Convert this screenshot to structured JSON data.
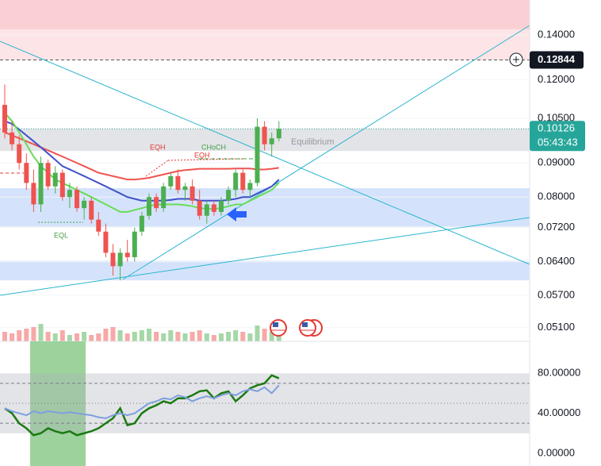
{
  "chart_data": [
    {
      "type": "candlestick",
      "log_scale": true,
      "grid": true,
      "ylim": [
        0.0486,
        0.158
      ],
      "yticks": [
        {
          "value": 0.14,
          "label": "0.14000"
        },
        {
          "value": 0.12,
          "label": "0.12000"
        },
        {
          "value": 0.105,
          "label": "0.10500"
        },
        {
          "value": 0.09,
          "label": "0.09000"
        },
        {
          "value": 0.08,
          "label": "0.08000"
        },
        {
          "value": 0.072,
          "label": "0.07200"
        },
        {
          "value": 0.064,
          "label": "0.06400"
        },
        {
          "value": 0.057,
          "label": "0.05700"
        },
        {
          "value": 0.051,
          "label": "0.05100"
        }
      ],
      "up_color": "#4caf50",
      "down_color": "#ef5350",
      "open": [
        0.11,
        0.1,
        0.096,
        0.09,
        0.084,
        0.078,
        0.09,
        0.083,
        0.087,
        0.08,
        0.082,
        0.077,
        0.079,
        0.074,
        0.071,
        0.066,
        0.063,
        0.066,
        0.065,
        0.071,
        0.075,
        0.08,
        0.077,
        0.083,
        0.086,
        0.082,
        0.083,
        0.079,
        0.075,
        0.078,
        0.076,
        0.079,
        0.082,
        0.087,
        0.082,
        0.084,
        0.102,
        0.096,
        0.098
      ],
      "high": [
        0.118,
        0.104,
        0.099,
        0.093,
        0.088,
        0.092,
        0.091,
        0.089,
        0.088,
        0.084,
        0.083,
        0.08,
        0.08,
        0.076,
        0.073,
        0.068,
        0.067,
        0.069,
        0.072,
        0.076,
        0.081,
        0.081,
        0.084,
        0.087,
        0.088,
        0.084,
        0.085,
        0.082,
        0.079,
        0.079,
        0.08,
        0.083,
        0.088,
        0.088,
        0.085,
        0.105,
        0.104,
        0.1,
        0.104
      ],
      "low": [
        0.098,
        0.094,
        0.088,
        0.082,
        0.076,
        0.076,
        0.082,
        0.081,
        0.079,
        0.077,
        0.076,
        0.074,
        0.073,
        0.07,
        0.065,
        0.061,
        0.06,
        0.064,
        0.064,
        0.07,
        0.074,
        0.076,
        0.076,
        0.082,
        0.081,
        0.079,
        0.078,
        0.074,
        0.073,
        0.075,
        0.075,
        0.078,
        0.08,
        0.081,
        0.08,
        0.083,
        0.094,
        0.092,
        0.097
      ],
      "close": [
        0.1,
        0.096,
        0.09,
        0.084,
        0.078,
        0.09,
        0.083,
        0.087,
        0.08,
        0.082,
        0.077,
        0.079,
        0.074,
        0.071,
        0.066,
        0.063,
        0.066,
        0.065,
        0.071,
        0.075,
        0.08,
        0.077,
        0.083,
        0.086,
        0.082,
        0.083,
        0.079,
        0.075,
        0.078,
        0.076,
        0.079,
        0.082,
        0.087,
        0.082,
        0.084,
        0.102,
        0.096,
        0.098,
        0.10126
      ],
      "volume_ylim": [
        0,
        100
      ],
      "volume": [
        30,
        25,
        35,
        40,
        45,
        55,
        30,
        25,
        35,
        20,
        25,
        30,
        20,
        25,
        40,
        45,
        35,
        25,
        30,
        35,
        40,
        30,
        25,
        35,
        30,
        25,
        30,
        35,
        25,
        20,
        25,
        30,
        35,
        30,
        25,
        50,
        40,
        30,
        35
      ],
      "lines": [
        {
          "color": "#f05350",
          "values": [
            0.1,
            0.099,
            0.098,
            0.097,
            0.096,
            0.095,
            0.094,
            0.093,
            0.092,
            0.091,
            0.09,
            0.089,
            0.088,
            0.087,
            0.0865,
            0.086,
            0.0855,
            0.085,
            0.085,
            0.0852,
            0.0855,
            0.086,
            0.0865,
            0.087,
            0.0875,
            0.0878,
            0.088,
            0.0882,
            0.0882,
            0.0882,
            0.0882,
            0.0882,
            0.0883,
            0.0883,
            0.0883,
            0.088,
            0.088,
            0.0882,
            0.0885
          ]
        },
        {
          "color": "#3f51c8",
          "values": [
            0.104,
            0.103,
            0.101,
            0.099,
            0.097,
            0.095,
            0.093,
            0.091,
            0.089,
            0.088,
            0.087,
            0.086,
            0.085,
            0.084,
            0.083,
            0.082,
            0.081,
            0.08,
            0.0795,
            0.079,
            0.079,
            0.079,
            0.079,
            0.0792,
            0.0795,
            0.0795,
            0.0795,
            0.079,
            0.079,
            0.079,
            0.079,
            0.0792,
            0.0795,
            0.08,
            0.08,
            0.081,
            0.082,
            0.083,
            0.085
          ]
        },
        {
          "color": "#66dd55",
          "values": [
            0.107,
            0.104,
            0.1,
            0.096,
            0.092,
            0.089,
            0.087,
            0.085,
            0.084,
            0.083,
            0.082,
            0.081,
            0.08,
            0.079,
            0.078,
            0.077,
            0.076,
            0.076,
            0.0765,
            0.077,
            0.0775,
            0.078,
            0.078,
            0.078,
            0.078,
            0.0778,
            0.0775,
            0.077,
            0.0768,
            0.0768,
            0.077,
            0.0775,
            0.078,
            0.078,
            0.079,
            0.08,
            0.081,
            0.082,
            0.084
          ]
        }
      ],
      "zones": [
        {
          "from": 0.1285,
          "to": 0.158,
          "color": "#fde4e6"
        },
        {
          "from": 0.1428,
          "to": 0.158,
          "color": "#fbd0d4"
        },
        {
          "from": 0.0938,
          "to": 0.1013,
          "color": "#e3e4e8"
        },
        {
          "from": 0.0722,
          "to": 0.0825,
          "color": "#d4e3fb"
        },
        {
          "from": 0.06,
          "to": 0.0642,
          "color": "#d4e3fb"
        }
      ],
      "annotations": [
        "EQH",
        "EQH",
        "CHoCH",
        "EQL",
        "Equilibrium"
      ],
      "crosshair_price": {
        "value": 0.12844,
        "label": "0.12844"
      },
      "last_price": {
        "value": 0.10126,
        "label": "0.10126"
      },
      "countdown": "05:43:43"
    },
    {
      "type": "line",
      "ylim": [
        -12.8,
        112
      ],
      "yticks": [
        {
          "value": 0,
          "label": "0.00000"
        },
        {
          "value": 40,
          "label": "40.00000"
        },
        {
          "value": 80,
          "label": "80.00000"
        }
      ],
      "band": [
        20,
        80
      ],
      "levels": [
        30,
        50,
        70
      ],
      "series": [
        {
          "color": "#1b7a12",
          "values": [
            45,
            40,
            30,
            25,
            18,
            20,
            25,
            22,
            20,
            22,
            18,
            20,
            22,
            25,
            30,
            35,
            45,
            28,
            30,
            40,
            45,
            48,
            52,
            50,
            55,
            55,
            58,
            62,
            63,
            55,
            60,
            62,
            52,
            58,
            65,
            68,
            70,
            78,
            75
          ]
        },
        {
          "color": "#7e9fe0",
          "values": [
            45,
            42,
            40,
            38,
            42,
            40,
            42,
            41,
            40,
            41,
            40,
            39,
            38,
            36,
            35,
            38,
            40,
            38,
            40,
            45,
            50,
            52,
            55,
            54,
            58,
            56,
            52,
            55,
            57,
            55,
            58,
            60,
            58,
            62,
            64,
            62,
            66,
            60,
            68
          ]
        }
      ]
    }
  ]
}
